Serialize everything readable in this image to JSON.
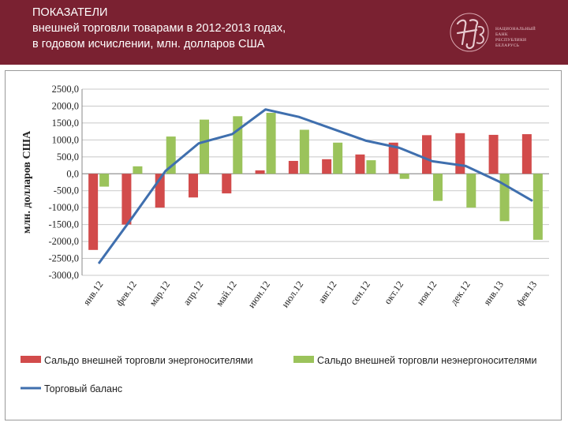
{
  "header": {
    "line1": "ПОКАЗАТЕЛИ",
    "line2": "внешней торговли товарами в 2012-2013 годах,",
    "line3": "в годовом исчислении, млн. долларов США"
  },
  "logo": {
    "monogram": "НБ",
    "text_lines": [
      "НАЦИОНАЛЬНЫЙ",
      "БАНК",
      "РЕСПУБЛИКИ",
      "БЕЛАРУСЬ"
    ]
  },
  "colors": {
    "header_bg": "#7a2131",
    "energy": "#d24b4b",
    "non_energy": "#9bc35b",
    "balance": "#3f6fae"
  },
  "chart_data": {
    "type": "bar",
    "ylabel": "млн. долларов США",
    "ylim": [
      -3000,
      2500
    ],
    "yticks": [
      "2500,0",
      "2000,0",
      "1500,0",
      "1000,0",
      "500,0",
      "0,0",
      "-500,0",
      "-1000,0",
      "-1500,0",
      "-2000,0",
      "-2500,0",
      "-3000,0"
    ],
    "ytick_values": [
      2500,
      2000,
      1500,
      1000,
      500,
      0,
      -500,
      -1000,
      -1500,
      -2000,
      -2500,
      -3000
    ],
    "grid": true,
    "categories": [
      "янв.12",
      "фев.12",
      "мар.12",
      "апр.12",
      "май.12",
      "июн.12",
      "июл.12",
      "авг.12",
      "сен.12",
      "окт.12",
      "ноя.12",
      "дек.12",
      "янв.13",
      "фев.13"
    ],
    "series": [
      {
        "name": "Сальдо внешней торговли энергоносителями",
        "kind": "bar",
        "values": [
          -2250,
          -1500,
          -1000,
          -700,
          -580,
          100,
          380,
          430,
          570,
          920,
          1140,
          1200,
          1150,
          1170
        ]
      },
      {
        "name": "Сальдо внешней торговли неэнергоносителями",
        "kind": "bar",
        "values": [
          -380,
          220,
          1100,
          1600,
          1700,
          1800,
          1300,
          920,
          400,
          -150,
          -800,
          -1000,
          -1400,
          -1950
        ]
      },
      {
        "name": "Торговый баланс",
        "kind": "line",
        "values": [
          -2650,
          -1300,
          80,
          900,
          1170,
          1900,
          1680,
          1330,
          980,
          770,
          370,
          230,
          -230,
          -800
        ]
      }
    ],
    "legend_position": "bottom"
  }
}
